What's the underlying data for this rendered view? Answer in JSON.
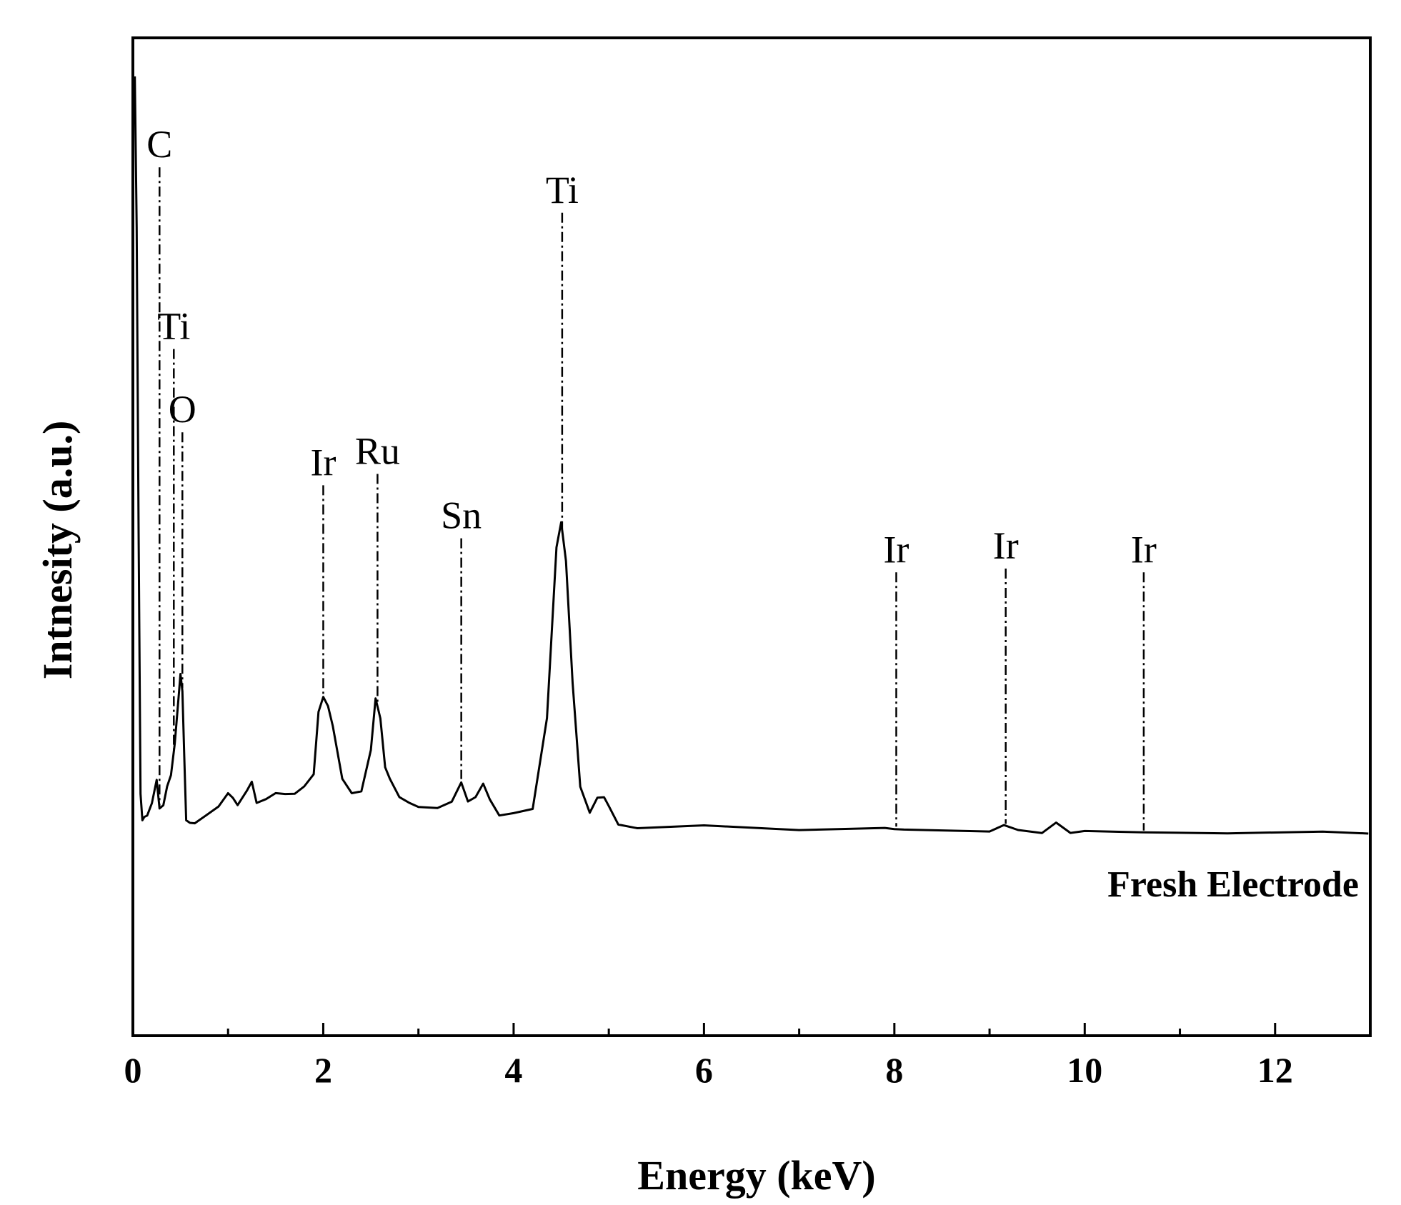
{
  "chart_data": {
    "type": "line",
    "xlabel": "Energy (keV)",
    "ylabel": "Intnesity (a.u.)",
    "xlim": [
      0,
      13
    ],
    "ylim": [
      0,
      105
    ],
    "x_major_ticks": [
      0,
      2,
      4,
      6,
      8,
      10,
      12
    ],
    "x_minor_ticks": [
      1,
      3,
      5,
      7,
      9,
      11
    ],
    "grid": false,
    "series": [
      {
        "name": "Fresh Electrode",
        "x": [
          0.02,
          0.04,
          0.06,
          0.08,
          0.1,
          0.12,
          0.15,
          0.2,
          0.25,
          0.28,
          0.32,
          0.36,
          0.4,
          0.44,
          0.48,
          0.5,
          0.52,
          0.54,
          0.56,
          0.6,
          0.65,
          0.75,
          0.9,
          1.0,
          1.05,
          1.1,
          1.2,
          1.25,
          1.3,
          1.4,
          1.5,
          1.6,
          1.7,
          1.8,
          1.9,
          1.95,
          2.0,
          2.05,
          2.1,
          2.15,
          2.2,
          2.3,
          2.4,
          2.5,
          2.55,
          2.6,
          2.65,
          2.7,
          2.8,
          2.9,
          3.0,
          3.2,
          3.35,
          3.45,
          3.52,
          3.6,
          3.68,
          3.75,
          3.85,
          4.0,
          4.2,
          4.35,
          4.45,
          4.5,
          4.55,
          4.62,
          4.7,
          4.8,
          4.88,
          4.95,
          5.0,
          5.1,
          5.3,
          6.0,
          7.0,
          7.9,
          8.0,
          8.1,
          9.0,
          9.15,
          9.3,
          9.55,
          9.7,
          9.85,
          10.0,
          10.6,
          11.5,
          12.5,
          12.98
        ],
        "values": [
          100,
          80,
          40,
          5,
          2,
          2,
          2.5,
          4,
          7,
          3.5,
          3.5,
          6.5,
          7.5,
          12,
          18,
          21,
          19,
          10,
          2,
          1.2,
          1.5,
          2.2,
          3.5,
          5.5,
          4.5,
          4,
          5.5,
          7,
          4,
          4.5,
          5.5,
          5,
          5.5,
          6,
          8,
          16,
          18,
          17,
          14,
          11,
          7,
          5.5,
          5.5,
          11,
          18,
          15,
          9,
          7,
          5,
          4,
          3.5,
          3.5,
          4,
          7,
          4,
          5,
          6.5,
          4.5,
          2.5,
          2.5,
          3.5,
          15,
          38,
          41,
          36,
          20,
          6,
          3,
          4.5,
          5,
          3.5,
          1.2,
          0.8,
          0.9,
          0.7,
          0.5,
          0.8,
          0.4,
          0.3,
          1.2,
          0.3,
          0.3,
          1.2,
          0.3,
          0.2,
          0.2,
          0.1,
          0.1,
          0.0
        ]
      }
    ],
    "peak_markers": [
      {
        "label": "C",
        "x": 0.28,
        "y_top": 88
      },
      {
        "label": "Ti",
        "x": 0.43,
        "y_top": 64
      },
      {
        "label": "O",
        "x": 0.52,
        "y_top": 53
      },
      {
        "label": "Ir",
        "x": 2.0,
        "y_top": 46
      },
      {
        "label": "Ru",
        "x": 2.57,
        "y_top": 47.5
      },
      {
        "label": "Sn",
        "x": 3.45,
        "y_top": 39
      },
      {
        "label": "Ti",
        "x": 4.51,
        "y_top": 82
      },
      {
        "label": "Ir",
        "x": 8.02,
        "y_top": 34.5
      },
      {
        "label": "Ir",
        "x": 9.17,
        "y_top": 35
      },
      {
        "label": "Ir",
        "x": 10.62,
        "y_top": 34.5
      }
    ],
    "annotation": "Fresh Electrode"
  }
}
